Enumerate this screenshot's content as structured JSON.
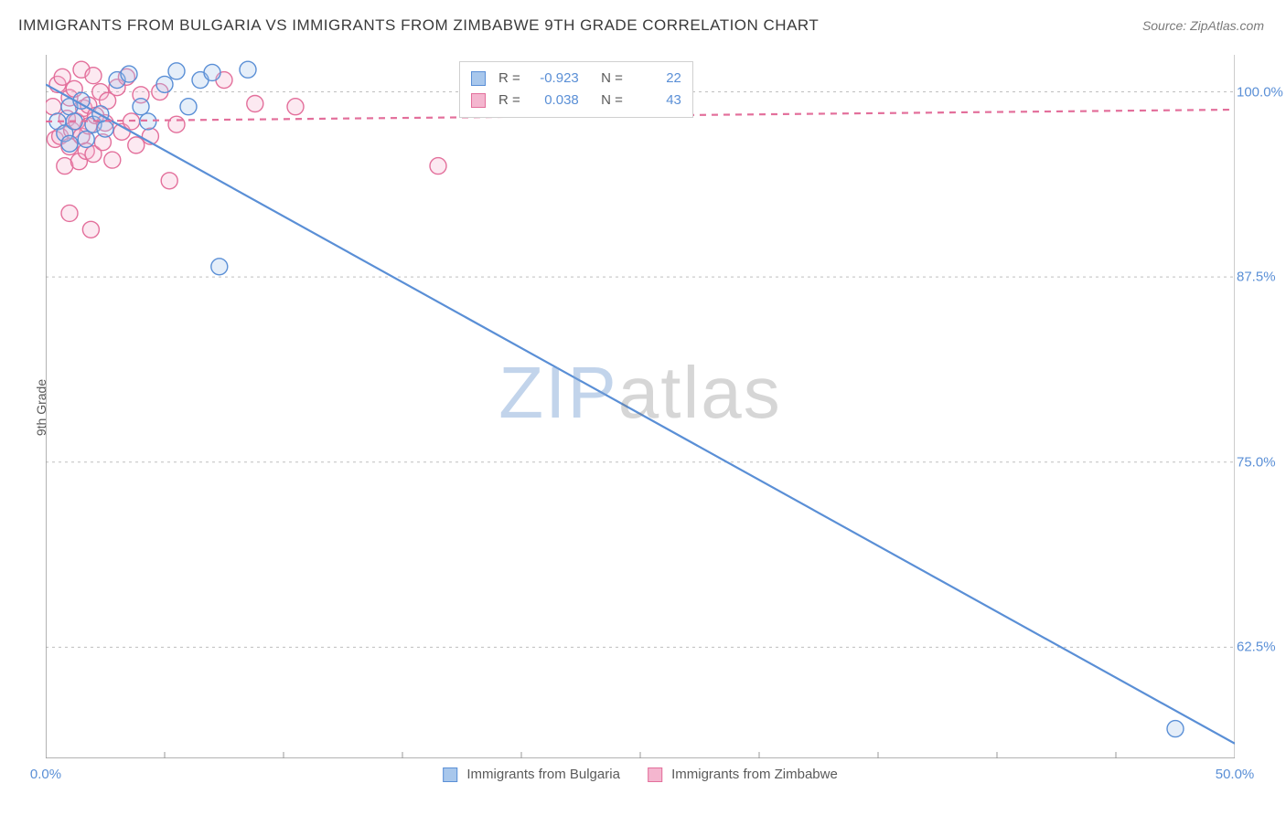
{
  "title": "IMMIGRANTS FROM BULGARIA VS IMMIGRANTS FROM ZIMBABWE 9TH GRADE CORRELATION CHART",
  "source_label": "Source: ZipAtlas.com",
  "ylabel": "9th Grade",
  "watermark": {
    "part1": "ZIP",
    "part2": "atlas"
  },
  "chart": {
    "type": "scatter-with-trend",
    "background_color": "#ffffff",
    "grid_color": "#bfbfbf",
    "axis_color": "#9a9a9a",
    "tick_color": "#9a9a9a",
    "tick_label_color": "#5a8fd6",
    "xlim": [
      0,
      50
    ],
    "ylim": [
      55,
      102.5
    ],
    "x_ticks_major": [
      0,
      50
    ],
    "x_ticks_minor_step": 5,
    "x_tick_labels": [
      "0.0%",
      "50.0%"
    ],
    "y_ticks": [
      62.5,
      75.0,
      87.5,
      100.0
    ],
    "y_tick_labels": [
      "62.5%",
      "75.0%",
      "87.5%",
      "100.0%"
    ],
    "marker_radius": 9,
    "marker_stroke_width": 1.4,
    "marker_fill_opacity": 0.3,
    "trend_line_width": 2.2
  },
  "series": [
    {
      "key": "bulgaria",
      "label": "Immigrants from Bulgaria",
      "stroke": "#5a8fd6",
      "fill": "#a8c7ec",
      "R": "-0.923",
      "N": "22",
      "trend": {
        "x1": 0,
        "y1": 100.5,
        "x2": 50,
        "y2": 56.0,
        "dashed": false
      },
      "points": [
        [
          0.5,
          98.0
        ],
        [
          0.8,
          97.2
        ],
        [
          1.0,
          99.0
        ],
        [
          1.0,
          96.5
        ],
        [
          1.2,
          98.0
        ],
        [
          1.5,
          99.4
        ],
        [
          1.7,
          96.8
        ],
        [
          2.0,
          97.8
        ],
        [
          2.3,
          98.5
        ],
        [
          2.5,
          97.5
        ],
        [
          3.0,
          100.8
        ],
        [
          3.5,
          101.2
        ],
        [
          4.0,
          99.0
        ],
        [
          4.3,
          98.0
        ],
        [
          5.0,
          100.5
        ],
        [
          5.5,
          101.4
        ],
        [
          6.0,
          99.0
        ],
        [
          6.5,
          100.8
        ],
        [
          7.0,
          101.3
        ],
        [
          8.5,
          101.5
        ],
        [
          7.3,
          88.2
        ],
        [
          47.5,
          57.0
        ]
      ]
    },
    {
      "key": "zimbabwe",
      "label": "Immigrants from Zimbabwe",
      "stroke": "#e36f9b",
      "fill": "#f4b6cf",
      "R": "0.038",
      "N": "43",
      "trend": {
        "x1": 0,
        "y1": 98.0,
        "x2": 50,
        "y2": 98.8,
        "dashed": true
      },
      "points": [
        [
          0.3,
          99.0
        ],
        [
          0.4,
          96.8
        ],
        [
          0.5,
          100.5
        ],
        [
          0.6,
          97.0
        ],
        [
          0.7,
          101.0
        ],
        [
          0.8,
          95.0
        ],
        [
          0.9,
          98.2
        ],
        [
          1.0,
          99.6
        ],
        [
          1.0,
          96.3
        ],
        [
          1.1,
          97.4
        ],
        [
          1.2,
          100.2
        ],
        [
          1.3,
          98.0
        ],
        [
          1.4,
          95.3
        ],
        [
          1.5,
          101.5
        ],
        [
          1.5,
          97.0
        ],
        [
          1.6,
          98.9
        ],
        [
          1.7,
          96.0
        ],
        [
          1.8,
          99.1
        ],
        [
          1.8,
          97.7
        ],
        [
          2.0,
          101.1
        ],
        [
          2.0,
          95.8
        ],
        [
          2.1,
          98.4
        ],
        [
          2.3,
          100.0
        ],
        [
          2.4,
          96.6
        ],
        [
          2.5,
          97.9
        ],
        [
          2.6,
          99.4
        ],
        [
          2.8,
          95.4
        ],
        [
          3.0,
          100.3
        ],
        [
          3.2,
          97.3
        ],
        [
          3.4,
          101.0
        ],
        [
          3.6,
          98.0
        ],
        [
          3.8,
          96.4
        ],
        [
          4.0,
          99.8
        ],
        [
          4.4,
          97.0
        ],
        [
          4.8,
          100.0
        ],
        [
          5.2,
          94.0
        ],
        [
          5.5,
          97.8
        ],
        [
          7.5,
          100.8
        ],
        [
          8.8,
          99.2
        ],
        [
          10.5,
          99.0
        ],
        [
          1.0,
          91.8
        ],
        [
          1.9,
          90.7
        ],
        [
          16.5,
          95.0
        ]
      ]
    }
  ],
  "legend_bottom": [
    {
      "swatch_fill": "#a8c7ec",
      "swatch_stroke": "#5a8fd6",
      "text_key": "series.0.label"
    },
    {
      "swatch_fill": "#f4b6cf",
      "swatch_stroke": "#e36f9b",
      "text_key": "series.1.label"
    }
  ],
  "corr_box": {
    "R_label": "R =",
    "N_label": "N =",
    "rows": [
      {
        "swatch_fill": "#a8c7ec",
        "swatch_stroke": "#5a8fd6",
        "R_key": "series.0.R",
        "N_key": "series.0.N"
      },
      {
        "swatch_fill": "#f4b6cf",
        "swatch_stroke": "#e36f9b",
        "R_key": "series.1.R",
        "N_key": "series.1.N"
      }
    ]
  }
}
